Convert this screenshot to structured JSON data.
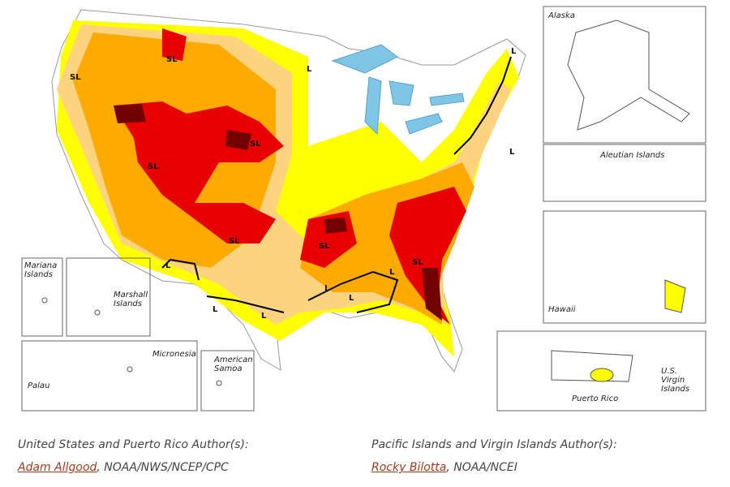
{
  "map": {
    "insets": [
      "Alaska",
      "Aleutian Islands",
      "Hawaii",
      "Puerto Rico",
      "U.S. Virgin Islands",
      "Mariana Islands",
      "Marshall Islands",
      "Palau",
      "Micronesia",
      "American Samoa"
    ],
    "impact_labels": [
      "SL",
      "SL",
      "SL",
      "SL",
      "SL",
      "SL",
      "SL",
      "L",
      "L",
      "L",
      "L",
      "L",
      "L",
      "L",
      "L",
      "L"
    ]
  },
  "authors": [
    {
      "heading": "United States and Puerto Rico Author(s):",
      "name": "Adam Allgood",
      "affiliation": ", NOAA/NWS/NCEP/CPC"
    },
    {
      "heading": "Pacific Islands and Virgin Islands Author(s):",
      "name": "Rocky Bilotta",
      "affiliation": ", NOAA/NCEI"
    }
  ]
}
